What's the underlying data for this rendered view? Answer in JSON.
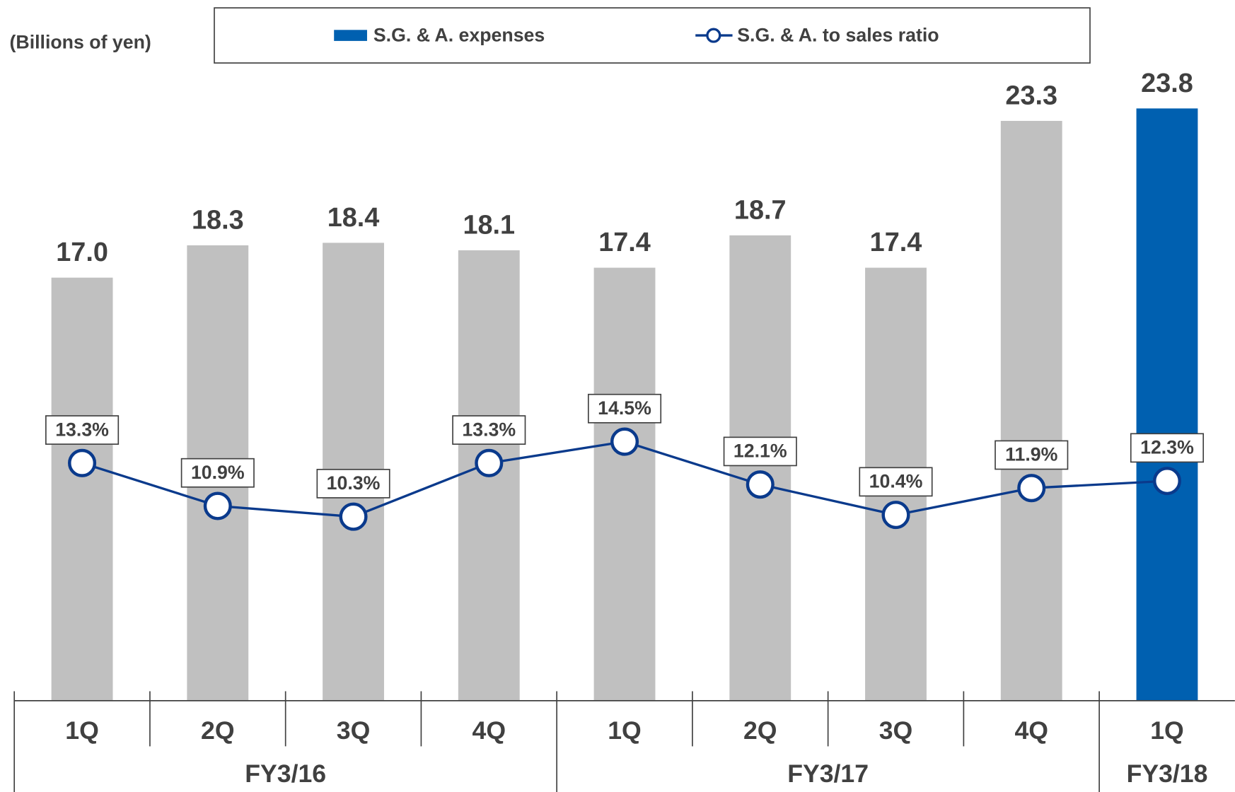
{
  "chart_data": {
    "type": "bar",
    "y_label": "(Billions of yen)",
    "groups": [
      {
        "name": "FY3/16",
        "categories": [
          "1Q",
          "2Q",
          "3Q",
          "4Q"
        ]
      },
      {
        "name": "FY3/17",
        "categories": [
          "1Q",
          "2Q",
          "3Q",
          "4Q"
        ]
      },
      {
        "name": "FY3/18",
        "categories": [
          "1Q"
        ]
      }
    ],
    "ylim": [
      0,
      28
    ],
    "y2lim": [
      0,
      39
    ],
    "legend": "top",
    "series": [
      {
        "name": "S.G. & A. expenses",
        "type": "bar",
        "color": "#0060b0",
        "point_colors": [
          "#c0c0c0",
          "#c0c0c0",
          "#c0c0c0",
          "#c0c0c0",
          "#c0c0c0",
          "#c0c0c0",
          "#c0c0c0",
          "#c0c0c0",
          "#0060b0"
        ],
        "values": [
          17.0,
          18.3,
          18.4,
          18.1,
          17.4,
          18.7,
          17.4,
          23.3,
          23.8
        ],
        "value_labels": [
          "17.0",
          "18.3",
          "18.4",
          "18.1",
          "17.4",
          "18.7",
          "17.4",
          "23.3",
          "23.8"
        ]
      },
      {
        "name": "S.G. & A. to sales ratio",
        "type": "line",
        "axis": "y2",
        "color": "#0a3a8c",
        "values": [
          13.3,
          10.9,
          10.3,
          13.3,
          14.5,
          12.1,
          10.4,
          11.9,
          12.3
        ],
        "value_labels": [
          "13.3%",
          "10.9%",
          "10.3%",
          "13.3%",
          "14.5%",
          "12.1%",
          "10.4%",
          "11.9%",
          "12.3%"
        ]
      }
    ]
  }
}
